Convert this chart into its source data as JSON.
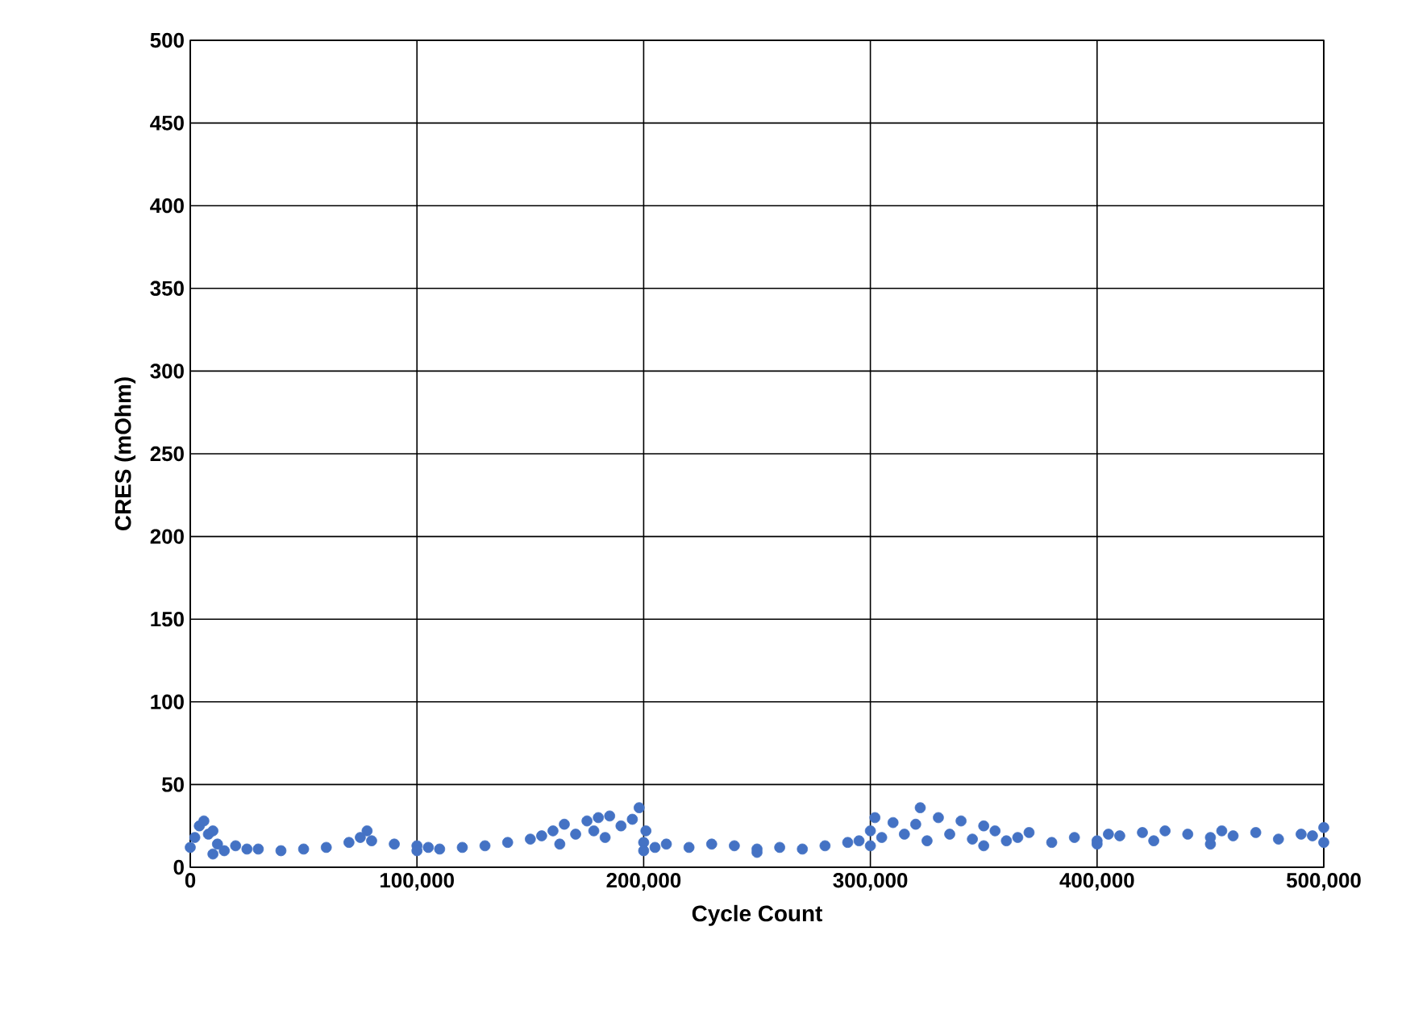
{
  "chart_data": {
    "type": "scatter",
    "xlabel": "Cycle Count",
    "ylabel": "CRES (mOhm)",
    "x": [
      0,
      2000,
      4000,
      6000,
      8000,
      10000,
      10000,
      12000,
      15000,
      20000,
      25000,
      30000,
      40000,
      50000,
      60000,
      70000,
      75000,
      78000,
      80000,
      90000,
      100000,
      100000,
      105000,
      110000,
      120000,
      130000,
      140000,
      150000,
      155000,
      160000,
      163000,
      165000,
      170000,
      175000,
      178000,
      180000,
      183000,
      185000,
      190000,
      195000,
      198000,
      200000,
      200000,
      201000,
      205000,
      210000,
      220000,
      230000,
      240000,
      250000,
      250000,
      260000,
      270000,
      280000,
      290000,
      295000,
      300000,
      300000,
      302000,
      305000,
      310000,
      315000,
      320000,
      322000,
      325000,
      330000,
      335000,
      340000,
      345000,
      350000,
      350000,
      355000,
      360000,
      365000,
      370000,
      380000,
      390000,
      400000,
      400000,
      405000,
      410000,
      420000,
      425000,
      430000,
      440000,
      450000,
      450000,
      455000,
      460000,
      470000,
      480000,
      490000,
      495000,
      500000,
      500000
    ],
    "values": [
      12,
      18,
      25,
      28,
      20,
      22,
      8,
      14,
      10,
      13,
      11,
      11,
      10,
      11,
      12,
      15,
      18,
      22,
      16,
      14,
      13,
      10,
      12,
      11,
      12,
      13,
      15,
      17,
      19,
      22,
      14,
      26,
      20,
      28,
      22,
      30,
      18,
      31,
      25,
      29,
      36,
      15,
      10,
      22,
      12,
      14,
      12,
      14,
      13,
      11,
      9,
      12,
      11,
      13,
      15,
      16,
      22,
      13,
      30,
      18,
      27,
      20,
      26,
      36,
      16,
      30,
      20,
      28,
      17,
      25,
      13,
      22,
      16,
      18,
      21,
      15,
      18,
      16,
      14,
      20,
      19,
      21,
      16,
      22,
      20,
      18,
      14,
      22,
      19,
      21,
      17,
      20,
      19,
      24,
      15
    ],
    "color": "#4472c4",
    "marker": "circle",
    "grid": true,
    "xlim": [
      0,
      500000
    ],
    "ylim": [
      0,
      500
    ],
    "xticks": [
      0,
      {
        "value": 100000,
        "label": "100,000"
      },
      {
        "value": 200000,
        "label": "200,000"
      },
      {
        "value": 300000,
        "label": "300,000"
      },
      {
        "value": 400000,
        "label": "400,000"
      },
      {
        "value": 500000,
        "label": "500,000"
      }
    ],
    "yticks": [
      0,
      50,
      100,
      150,
      200,
      250,
      300,
      350,
      400,
      450,
      500
    ]
  }
}
